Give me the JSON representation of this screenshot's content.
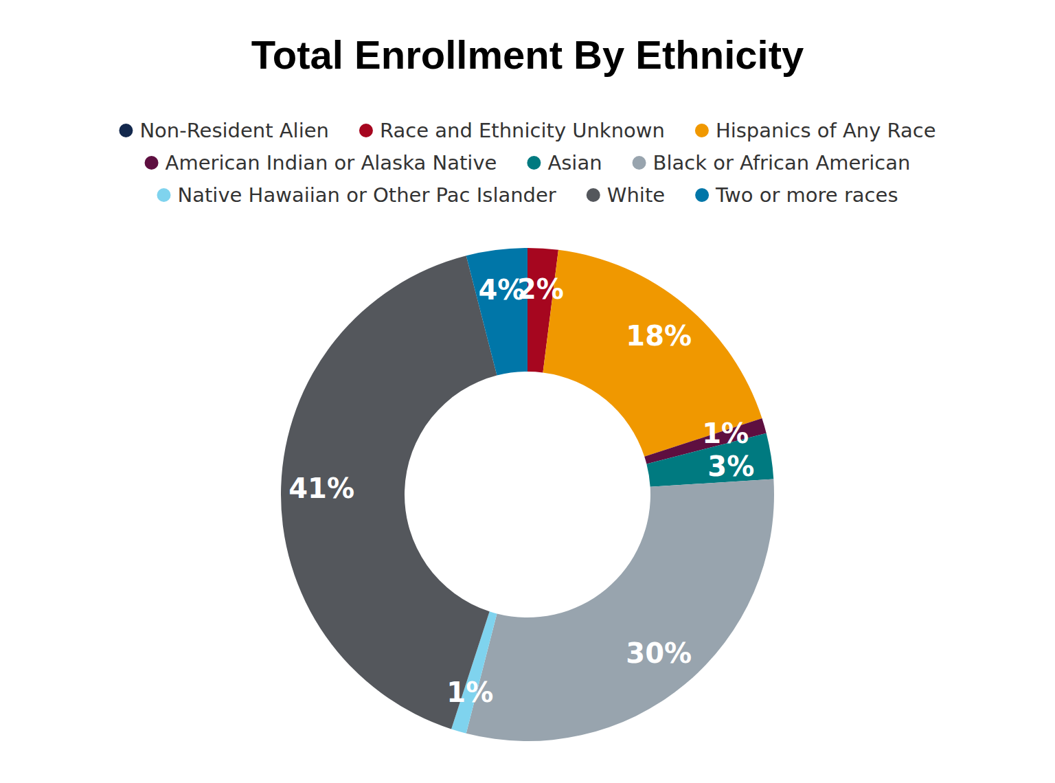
{
  "chart_data": {
    "type": "donut",
    "title": "Total Enrollment By Ethnicity",
    "categories": [
      "Non-Resident Alien",
      "Race and Ethnicity Unknown",
      "Hispanics of Any Race",
      "American Indian or Alaska Native",
      "Asian",
      "Black or African American",
      "Native Hawaiian or Other Pac Islander",
      "White",
      "Two or more races"
    ],
    "values": [
      0,
      2,
      18,
      1,
      3,
      30,
      1,
      41,
      4
    ],
    "value_labels": [
      null,
      "2%",
      "18%",
      "1%",
      "3%",
      "30%",
      "1%",
      "41%",
      "4%"
    ],
    "colors": [
      "#13284d",
      "#a6061f",
      "#f09800",
      "#5e0f40",
      "#007a80",
      "#98a4ae",
      "#7fd3ee",
      "#54575c",
      "#0076a8"
    ],
    "data_labels": true,
    "legend": "top"
  }
}
